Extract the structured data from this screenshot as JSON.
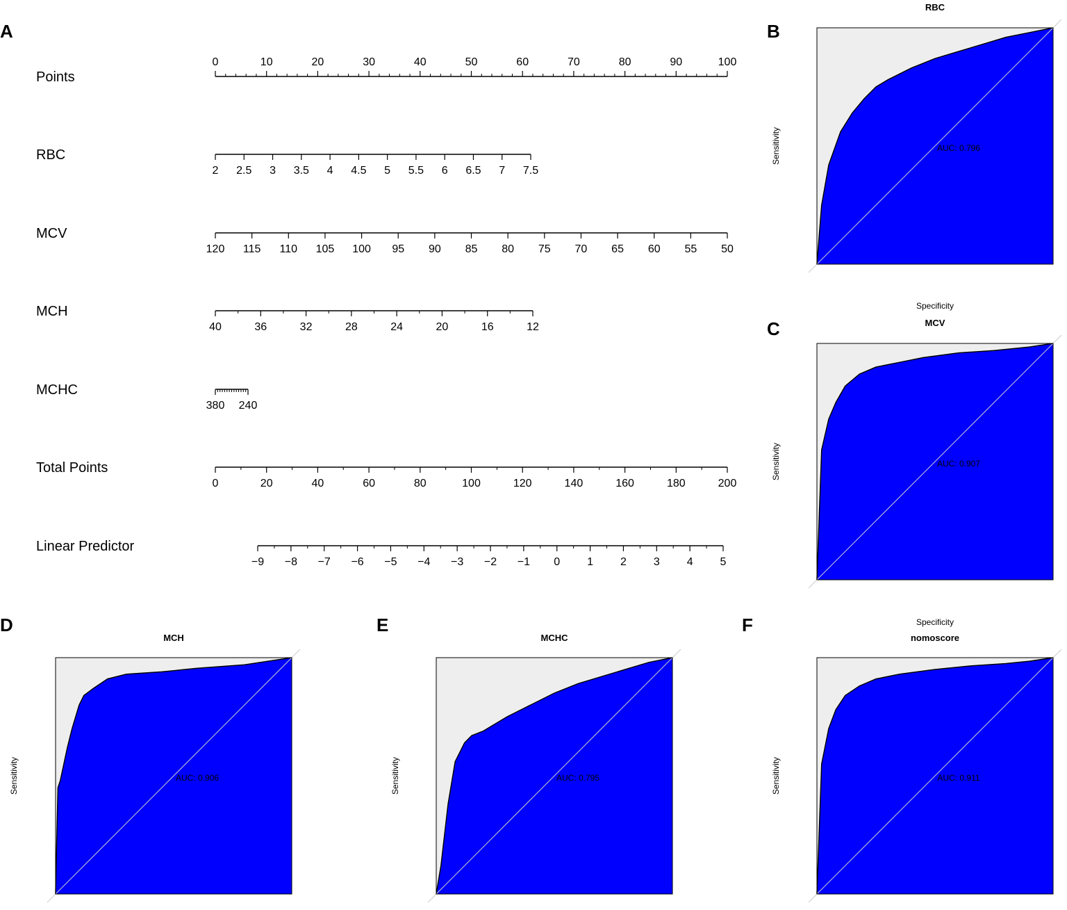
{
  "nomogram": {
    "panel_letter": "A",
    "rows": [
      {
        "label": "Points",
        "ticks": [
          "0",
          "10",
          "20",
          "30",
          "40",
          "50",
          "60",
          "70",
          "80",
          "90",
          "100"
        ],
        "minor_per_major": 5
      },
      {
        "label": "RBC",
        "ticks": [
          "2",
          "2.5",
          "3",
          "3.5",
          "4",
          "4.5",
          "5",
          "5.5",
          "6",
          "6.5",
          "7",
          "7.5"
        ],
        "minor_per_major": 1
      },
      {
        "label": "MCV",
        "ticks": [
          "120",
          "115",
          "110",
          "105",
          "100",
          "95",
          "90",
          "85",
          "80",
          "75",
          "70",
          "65",
          "60",
          "55",
          "50"
        ],
        "minor_per_major": 1
      },
      {
        "label": "MCH",
        "ticks": [
          "40",
          "36",
          "32",
          "28",
          "24",
          "20",
          "16",
          "12"
        ],
        "minor_per_major": 2
      },
      {
        "label": "MCHC",
        "ticks": [
          "380",
          "240"
        ],
        "minor_per_major": 14
      },
      {
        "label": "Total Points",
        "ticks": [
          "0",
          "20",
          "40",
          "60",
          "80",
          "100",
          "120",
          "140",
          "160",
          "180",
          "200"
        ],
        "minor_per_major": 2
      },
      {
        "label": "Linear Predictor",
        "ticks": [
          "−9",
          "−8",
          "−7",
          "−6",
          "−5",
          "−4",
          "−3",
          "−2",
          "−1",
          "0",
          "1",
          "2",
          "3",
          "4",
          "5"
        ],
        "minor_per_major": 2
      }
    ]
  },
  "chart_data": [
    {
      "type": "area",
      "panel": "B",
      "title": "RBC",
      "xlabel": "Specificity",
      "ylabel": "Sensitivity",
      "auc_text": "AUC: 0.796",
      "x": [
        0,
        0.02,
        0.05,
        0.1,
        0.15,
        0.2,
        0.25,
        0.3,
        0.4,
        0.5,
        0.6,
        0.7,
        0.8,
        0.9,
        1.0
      ],
      "y": [
        0,
        0.25,
        0.42,
        0.56,
        0.64,
        0.7,
        0.75,
        0.78,
        0.83,
        0.87,
        0.9,
        0.93,
        0.96,
        0.98,
        1.0
      ]
    },
    {
      "type": "area",
      "panel": "C",
      "title": "MCV",
      "xlabel": "Specificity",
      "ylabel": "Sensitivity",
      "auc_text": "AUC: 0.907",
      "x": [
        0,
        0.02,
        0.05,
        0.08,
        0.12,
        0.18,
        0.25,
        0.35,
        0.45,
        0.6,
        0.75,
        0.9,
        1.0
      ],
      "y": [
        0,
        0.55,
        0.68,
        0.75,
        0.82,
        0.87,
        0.9,
        0.92,
        0.94,
        0.96,
        0.97,
        0.985,
        1.0
      ]
    },
    {
      "type": "area",
      "panel": "D",
      "title": "MCH",
      "xlabel": "Specificity",
      "ylabel": "Sensitivity",
      "auc_text": "AUC: 0.906",
      "x": [
        0,
        0.01,
        0.02,
        0.05,
        0.07,
        0.1,
        0.12,
        0.16,
        0.22,
        0.3,
        0.45,
        0.6,
        0.8,
        1.0
      ],
      "y": [
        0,
        0.45,
        0.48,
        0.62,
        0.7,
        0.8,
        0.84,
        0.87,
        0.91,
        0.93,
        0.94,
        0.955,
        0.97,
        1.0
      ]
    },
    {
      "type": "area",
      "panel": "E",
      "title": "MCHC",
      "xlabel": "Specificity",
      "ylabel": "Sensitivity",
      "auc_text": "AUC: 0.795",
      "x": [
        0,
        0.02,
        0.05,
        0.08,
        0.12,
        0.15,
        0.2,
        0.3,
        0.4,
        0.5,
        0.6,
        0.7,
        0.8,
        0.9,
        1.0
      ],
      "y": [
        0,
        0.12,
        0.38,
        0.56,
        0.64,
        0.67,
        0.69,
        0.75,
        0.8,
        0.85,
        0.89,
        0.92,
        0.95,
        0.98,
        1.0
      ]
    },
    {
      "type": "area",
      "panel": "F",
      "title": "nomoscore",
      "xlabel": "Specificity",
      "ylabel": "Sensitivity",
      "auc_text": "AUC: 0.911",
      "x": [
        0,
        0.02,
        0.05,
        0.08,
        0.12,
        0.18,
        0.25,
        0.35,
        0.5,
        0.65,
        0.8,
        0.9,
        1.0
      ],
      "y": [
        0,
        0.55,
        0.7,
        0.78,
        0.84,
        0.88,
        0.91,
        0.93,
        0.95,
        0.965,
        0.975,
        0.985,
        1.0
      ]
    }
  ],
  "colors": {
    "fill": "#0000FF",
    "background": "#EEEEEE",
    "diagonal": "#CCCCCC",
    "axis": "#000000"
  }
}
